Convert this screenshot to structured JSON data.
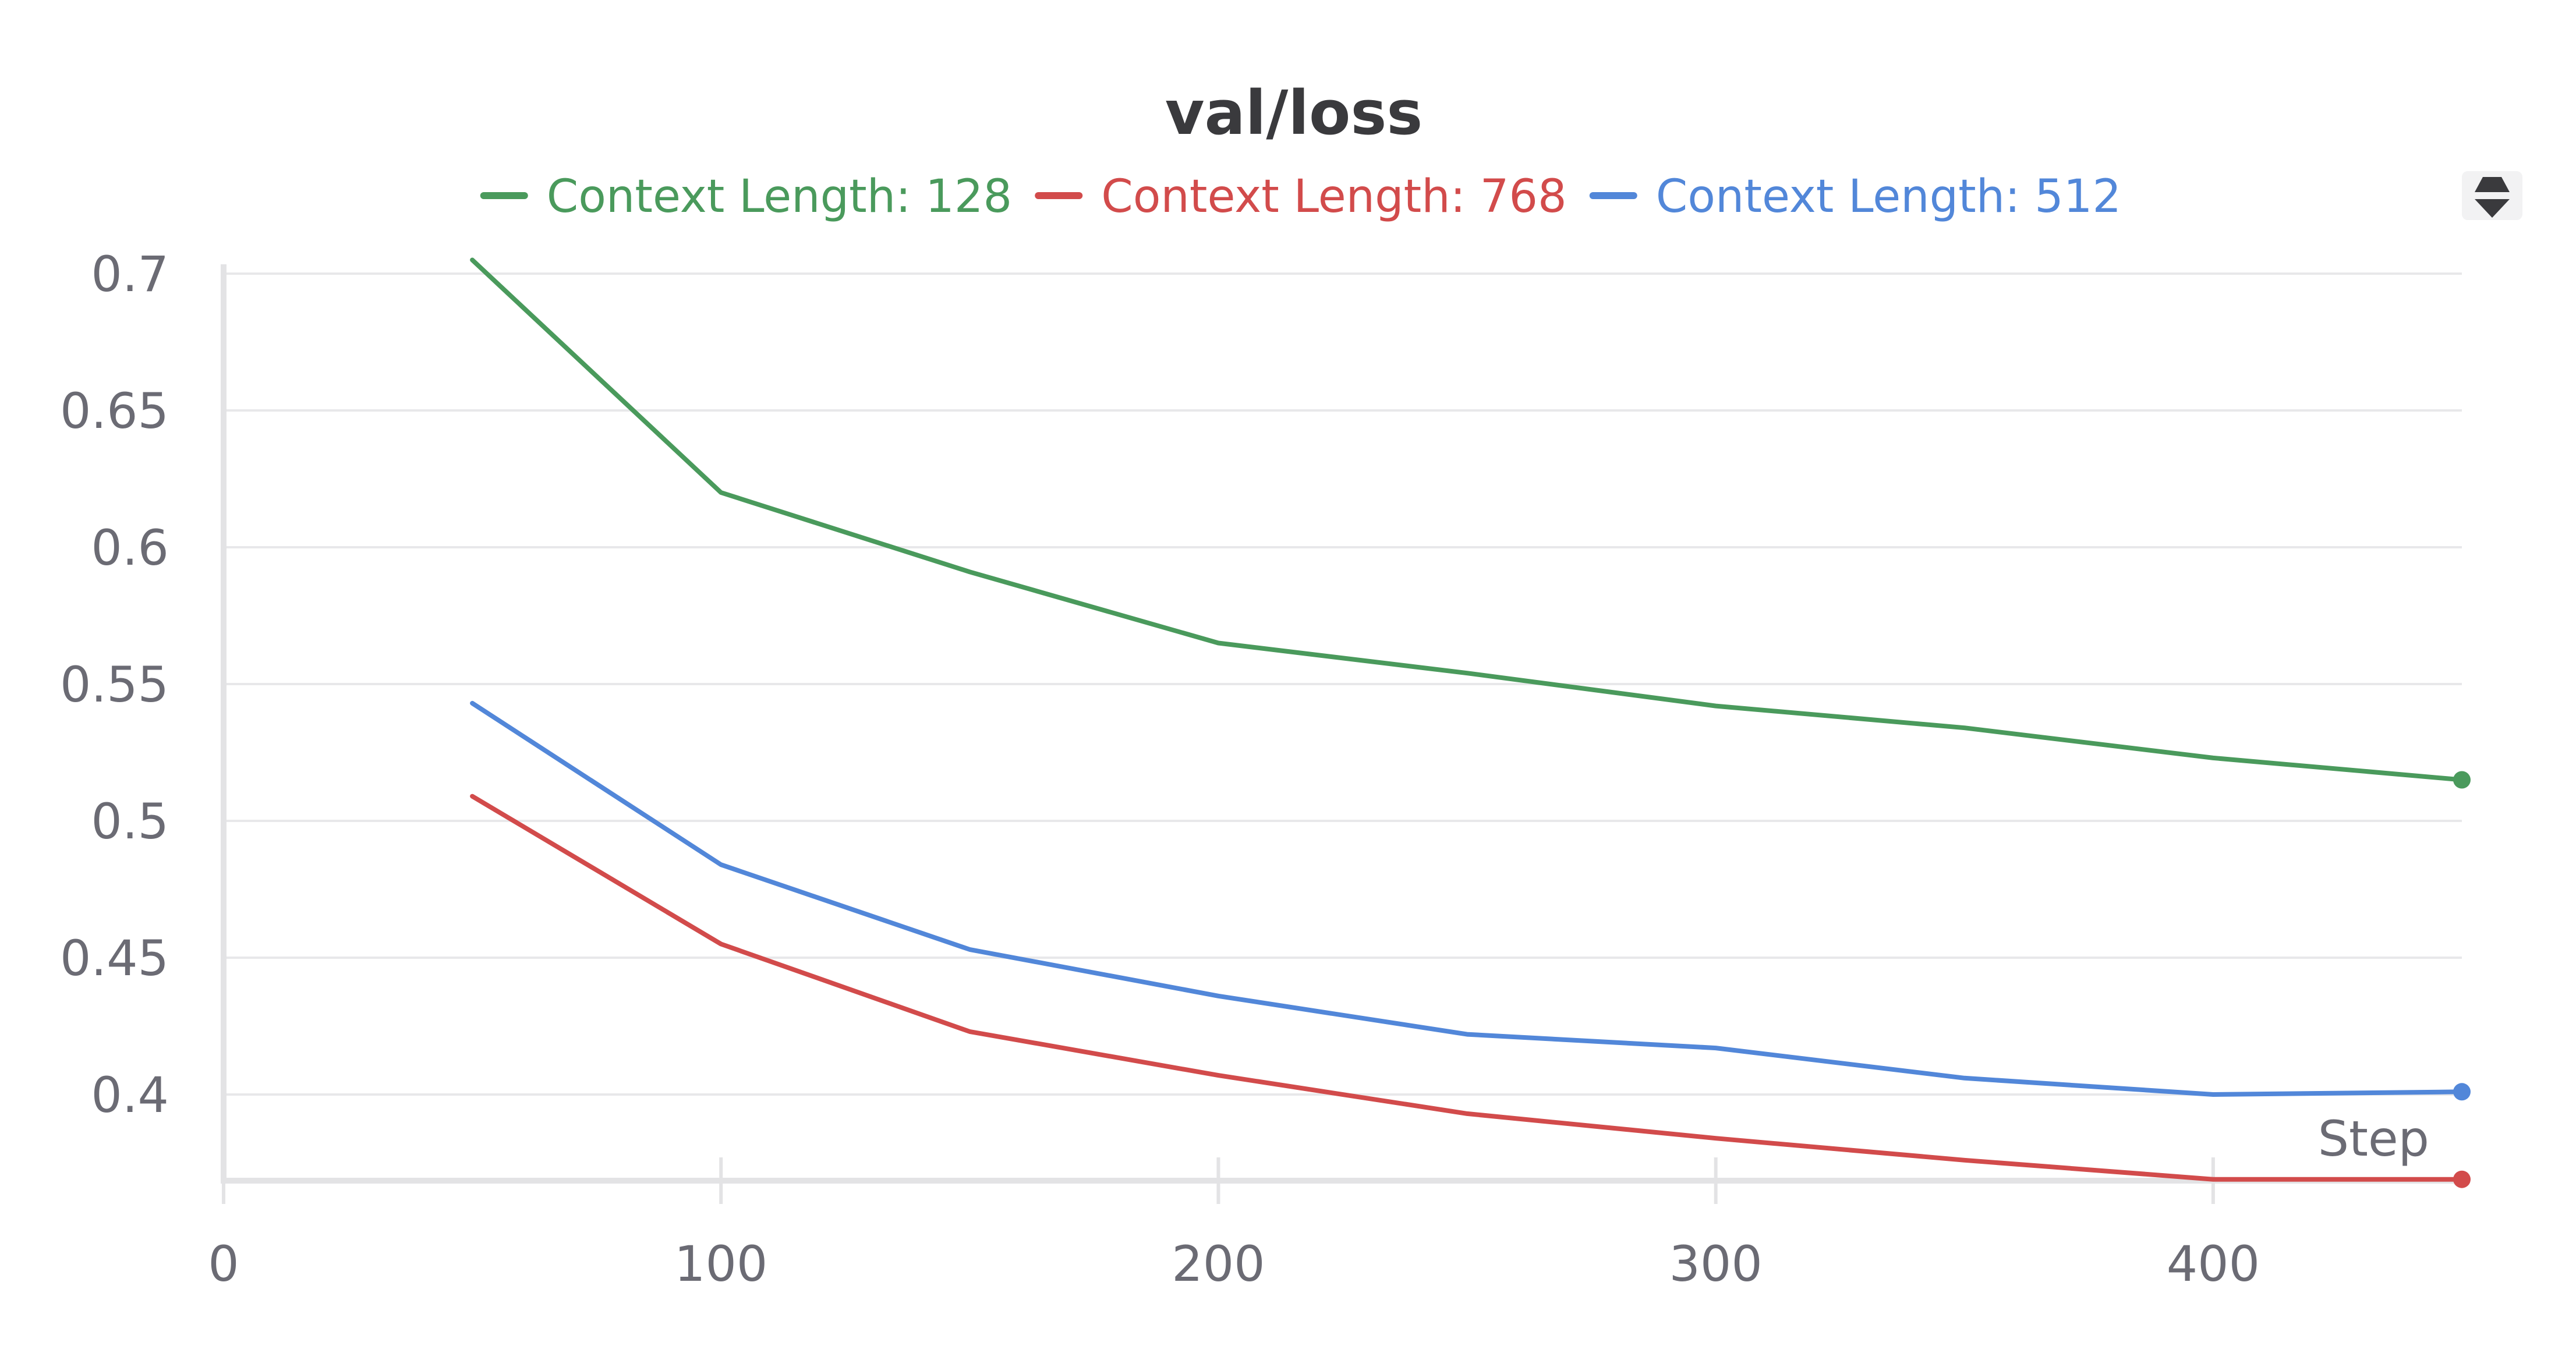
{
  "chart_data": {
    "type": "line",
    "title": "val/loss",
    "xlabel": "Step",
    "ylabel": "",
    "xlim": [
      0,
      450
    ],
    "ylim": [
      0.37,
      0.705
    ],
    "x_ticks": [
      0,
      100,
      200,
      300,
      400
    ],
    "x_tick_labels": [
      "0",
      "100",
      "200",
      "300",
      "400"
    ],
    "y_ticks": [
      0.4,
      0.45,
      0.5,
      0.55,
      0.6,
      0.65,
      0.7
    ],
    "y_tick_labels": [
      "0.4",
      "0.45",
      "0.5",
      "0.55",
      "0.6",
      "0.65",
      "0.7"
    ],
    "grid": true,
    "legend_position": "top-center",
    "series": [
      {
        "name": "Context Length: 128",
        "color": "#4a9a5c",
        "x": [
          50,
          100,
          150,
          200,
          250,
          300,
          350,
          400,
          450
        ],
        "values": [
          0.705,
          0.62,
          0.591,
          0.565,
          0.554,
          0.542,
          0.534,
          0.523,
          0.515
        ]
      },
      {
        "name": "Context Length: 768",
        "color": "#d24b4b",
        "x": [
          50,
          100,
          150,
          200,
          250,
          300,
          350,
          400,
          450
        ],
        "values": [
          0.509,
          0.455,
          0.423,
          0.407,
          0.393,
          0.384,
          0.376,
          0.369,
          0.369
        ]
      },
      {
        "name": "Context Length: 512",
        "color": "#5287d9",
        "x": [
          50,
          100,
          150,
          200,
          250,
          300,
          350,
          400,
          450
        ],
        "values": [
          0.543,
          0.484,
          0.453,
          0.436,
          0.422,
          0.417,
          0.406,
          0.4,
          0.401
        ]
      }
    ]
  },
  "legend_toggle_icon": "sort-arrows-icon"
}
